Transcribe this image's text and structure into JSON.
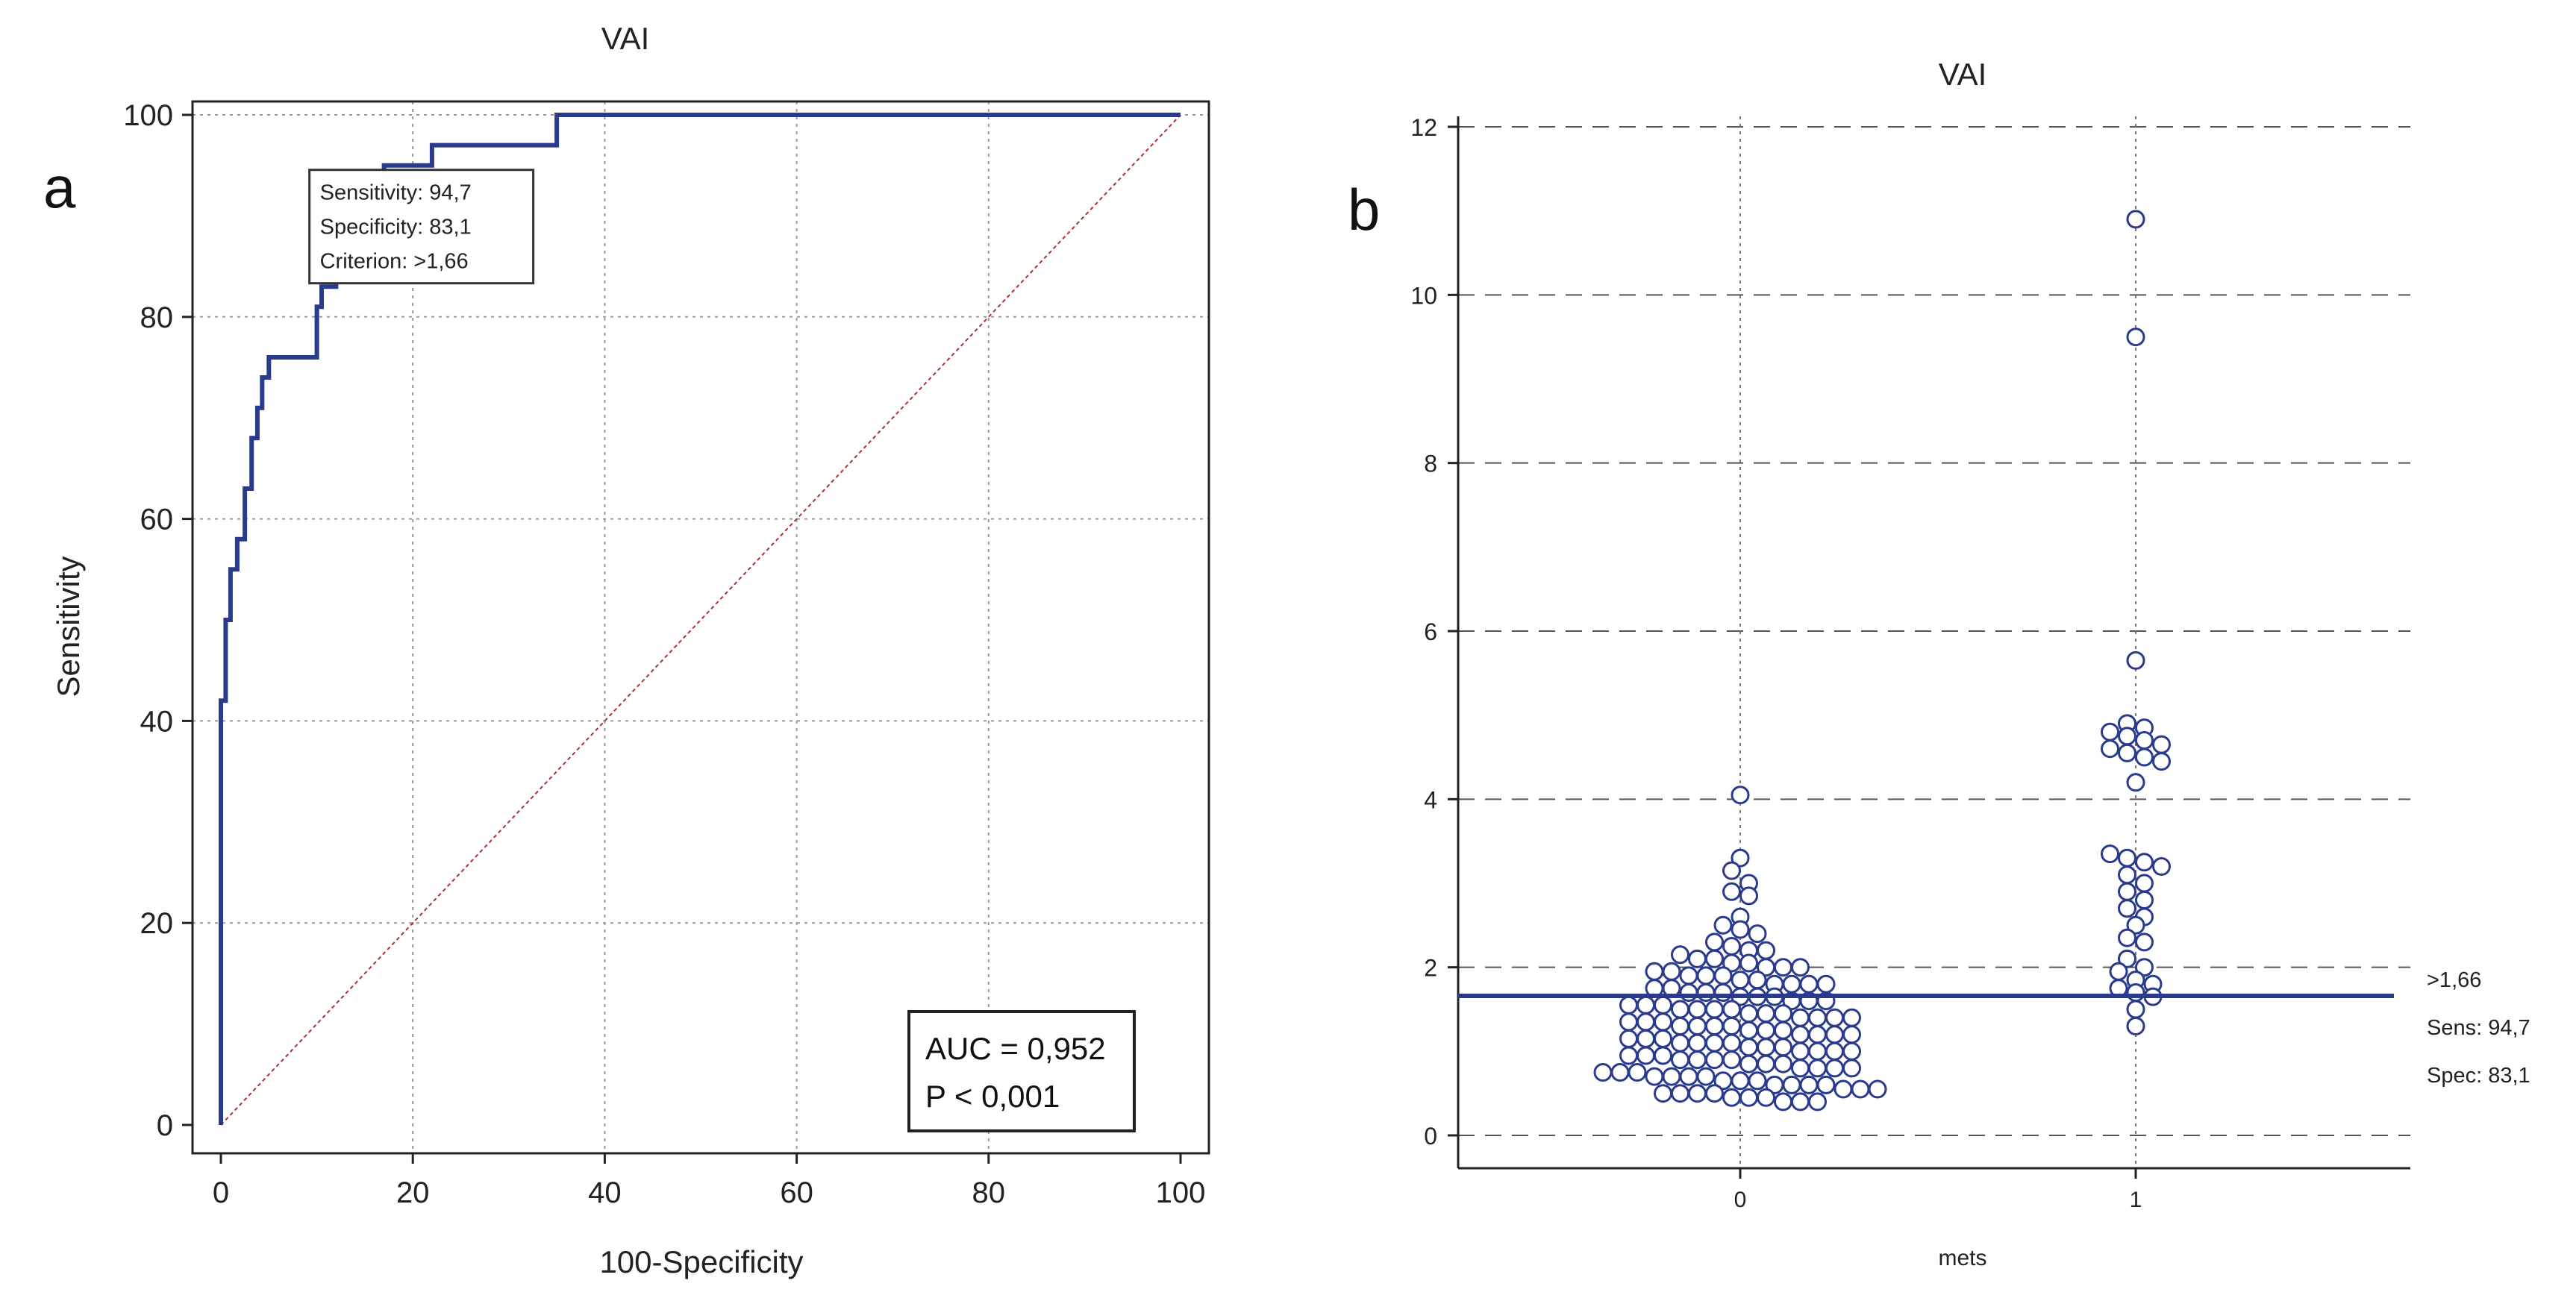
{
  "chart_data": [
    {
      "panel_label": "a",
      "type": "line",
      "title": "VAI",
      "xlabel": "100-Specificity",
      "ylabel": "Sensitivity",
      "xlim": [
        0,
        100
      ],
      "ylim": [
        0,
        100
      ],
      "xticks": [
        "0",
        "20",
        "40",
        "60",
        "80",
        "100"
      ],
      "yticks": [
        "0",
        "20",
        "40",
        "60",
        "80",
        "100"
      ],
      "grid": true,
      "roc": {
        "x": [
          0,
          0,
          0.5,
          0.5,
          1,
          1,
          1.7,
          1.7,
          2.5,
          2.5,
          3.2,
          3.2,
          3.8,
          3.8,
          4.3,
          4.3,
          5,
          5,
          10,
          10,
          10.5,
          10.5,
          12,
          12,
          13,
          13,
          14.5,
          14.5,
          15.2,
          15.2,
          16,
          16,
          17,
          17,
          22,
          22,
          35,
          35,
          100
        ],
        "y": [
          0,
          42,
          42,
          50,
          50,
          55,
          55,
          58,
          58,
          63,
          63,
          68,
          68,
          71,
          71,
          74,
          74,
          76,
          76,
          81,
          81,
          83,
          83,
          86,
          86,
          87,
          87,
          89,
          89,
          91,
          91,
          93,
          93,
          95,
          95,
          97,
          97,
          100,
          100
        ]
      },
      "reference_line": {
        "x": [
          0,
          100
        ],
        "y": [
          0,
          100
        ]
      },
      "criterion_box": {
        "lines": [
          "Sensitivity: 94,7",
          "Specificity: 83,1",
          "Criterion: >1,66"
        ],
        "anchor": [
          17,
          95
        ]
      },
      "stats_box": {
        "lines": [
          "AUC = 0,952",
          "P < 0,001"
        ],
        "placement": "bottom-right"
      }
    },
    {
      "panel_label": "b",
      "type": "scatter",
      "title": "VAI",
      "xlabel": "mets",
      "ylabel": "",
      "categories": [
        "0",
        "1"
      ],
      "ylim": [
        0,
        12
      ],
      "yticks": [
        "0",
        "2",
        "4",
        "6",
        "8",
        "10",
        "12"
      ],
      "grid": true,
      "cutoff": {
        "value": 1.66,
        "labels": [
          ">1,66",
          "Sens: 94,7",
          "Spec: 83,1"
        ]
      },
      "series": [
        {
          "category": "0",
          "values": [
            4.05,
            3.3,
            3.15,
            3.0,
            2.9,
            2.85,
            2.6,
            2.5,
            2.45,
            2.4,
            2.3,
            2.25,
            2.2,
            2.2,
            2.15,
            2.1,
            2.1,
            2.05,
            2.05,
            2.0,
            2.0,
            2.0,
            1.95,
            1.95,
            1.9,
            1.9,
            1.9,
            1.85,
            1.85,
            1.8,
            1.8,
            1.8,
            1.8,
            1.75,
            1.75,
            1.7,
            1.7,
            1.7,
            1.65,
            1.65,
            1.65,
            1.6,
            1.6,
            1.6,
            1.55,
            1.55,
            1.55,
            1.5,
            1.5,
            1.5,
            1.5,
            1.45,
            1.45,
            1.45,
            1.4,
            1.4,
            1.4,
            1.4,
            1.35,
            1.35,
            1.35,
            1.3,
            1.3,
            1.3,
            1.3,
            1.25,
            1.25,
            1.25,
            1.2,
            1.2,
            1.2,
            1.2,
            1.15,
            1.15,
            1.15,
            1.1,
            1.1,
            1.1,
            1.1,
            1.05,
            1.05,
            1.05,
            1.0,
            1.0,
            1.0,
            1.0,
            0.95,
            0.95,
            0.95,
            0.9,
            0.9,
            0.9,
            0.9,
            0.85,
            0.85,
            0.85,
            0.8,
            0.8,
            0.8,
            0.8,
            0.75,
            0.75,
            0.75,
            0.7,
            0.7,
            0.7,
            0.7,
            0.65,
            0.65,
            0.65,
            0.6,
            0.6,
            0.6,
            0.6,
            0.55,
            0.55,
            0.55,
            0.5,
            0.5,
            0.5,
            0.5,
            0.45,
            0.45,
            0.45,
            0.4,
            0.4,
            0.4
          ]
        },
        {
          "category": "1",
          "values": [
            10.9,
            9.5,
            5.65,
            4.9,
            4.85,
            4.8,
            4.75,
            4.7,
            4.65,
            4.6,
            4.55,
            4.5,
            4.45,
            4.2,
            3.35,
            3.3,
            3.25,
            3.2,
            3.1,
            3.0,
            2.9,
            2.8,
            2.7,
            2.6,
            2.5,
            2.35,
            2.3,
            2.1,
            2.0,
            1.95,
            1.85,
            1.8,
            1.75,
            1.7,
            1.65,
            1.5,
            1.3
          ]
        }
      ]
    }
  ]
}
